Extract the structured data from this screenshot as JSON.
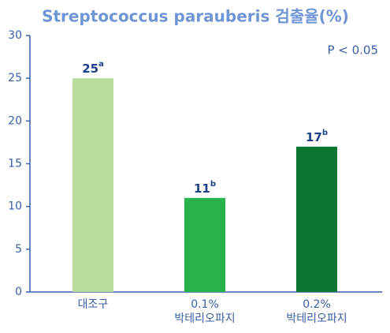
{
  "chart_data": {
    "type": "bar",
    "title": "Streptococcus parauberis 검출율(%)",
    "annotation": "P < 0.05",
    "categories": [
      [
        "대조구"
      ],
      [
        "0.1%",
        "박테리오파지"
      ],
      [
        "0.2%",
        "박테리오파지"
      ]
    ],
    "values": [
      25,
      11,
      17
    ],
    "superscripts": [
      "a",
      "b",
      "b"
    ],
    "colors": [
      "#b8dc9b",
      "#27b24a",
      "#0b7634"
    ],
    "ylim": [
      0,
      30
    ],
    "yticks": [
      0,
      5,
      10,
      15,
      20,
      25,
      30
    ]
  }
}
